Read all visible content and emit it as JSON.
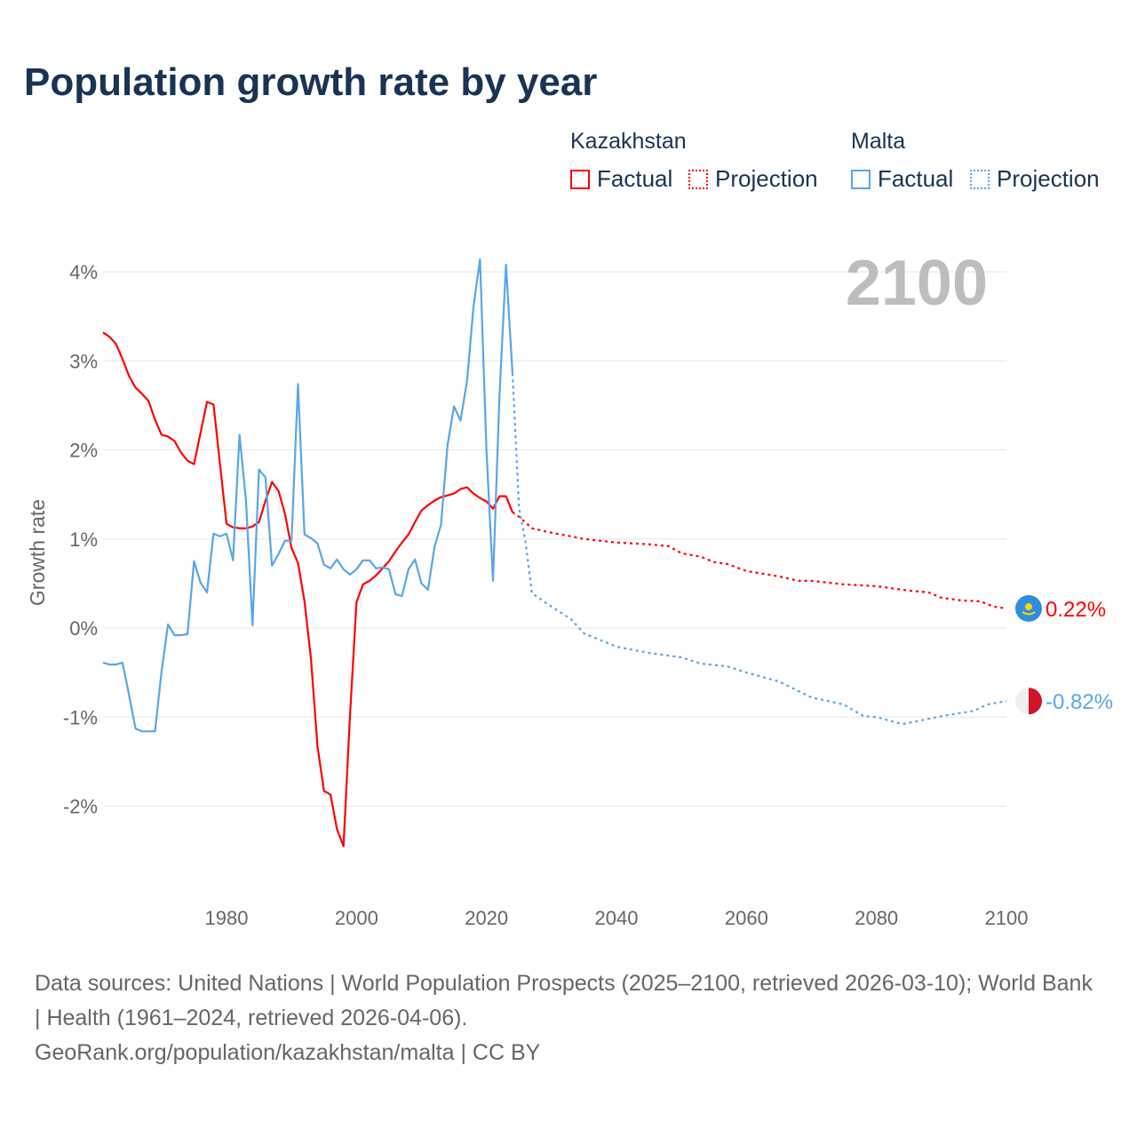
{
  "title": "Population growth rate by year",
  "legend": {
    "groups": [
      {
        "name": "Kazakhstan",
        "factual": "Factual",
        "projection": "Projection",
        "color": "#ff0000"
      },
      {
        "name": "Malta",
        "factual": "Factual",
        "projection": "Projection",
        "color": "#5aa5e8"
      }
    ]
  },
  "year_label": "2100",
  "footer": {
    "line1": "Data sources: United Nations | World Population Prospects (2025–2100, retrieved 2026-03-10); World Bank | Health (1961–2024, retrieved 2026-04-06).",
    "line2": "GeoRank.org/population/kazakhstan/malta | CC BY"
  },
  "chart_data": {
    "type": "line",
    "title": "Population growth rate by year",
    "xlabel": "",
    "ylabel": "Growth rate",
    "xlim": [
      1961,
      2100
    ],
    "ylim": [
      -3,
      4.5
    ],
    "xticks": [
      1980,
      2000,
      2020,
      2040,
      2060,
      2080,
      2100
    ],
    "xtick_labels": [
      "1980",
      "2000",
      "2020",
      "2040",
      "2060",
      "2080",
      "2100"
    ],
    "yticks": [
      -2,
      -1,
      0,
      1,
      2,
      3,
      4
    ],
    "ytick_labels": [
      "-2%",
      "-1%",
      "0%",
      "1%",
      "2%",
      "3%",
      "4%"
    ],
    "grid": true,
    "legend_position": "top-right",
    "series": [
      {
        "name": "Kazakhstan",
        "color": "#ff0000",
        "end_label": "0.22%",
        "flag": "kazakhstan-flag",
        "factual_start": 1961,
        "factual": [
          3.32,
          3.27,
          3.19,
          3.02,
          2.83,
          2.7,
          2.63,
          2.55,
          2.34,
          2.17,
          2.15,
          2.1,
          1.97,
          1.88,
          1.84,
          2.19,
          2.54,
          2.51,
          1.84,
          1.17,
          1.13,
          1.12,
          1.12,
          1.14,
          1.19,
          1.43,
          1.64,
          1.54,
          1.28,
          0.9,
          0.73,
          0.3,
          -0.35,
          -1.33,
          -1.83,
          -1.87,
          -2.26,
          -2.45,
          -0.98,
          0.29,
          0.49,
          0.53,
          0.59,
          0.67,
          0.75,
          0.86,
          0.96,
          1.05,
          1.19,
          1.32,
          1.38,
          1.43,
          1.47,
          1.49,
          1.51,
          1.56,
          1.58,
          1.51,
          1.46,
          1.42,
          1.34,
          1.48,
          1.48,
          1.3
        ],
        "projection": [
          [
            2024,
            1.3
          ],
          [
            2025,
            1.25
          ],
          [
            2027,
            1.12
          ],
          [
            2030,
            1.07
          ],
          [
            2033,
            1.03
          ],
          [
            2035,
            1.0
          ],
          [
            2040,
            0.96
          ],
          [
            2045,
            0.94
          ],
          [
            2048,
            0.92
          ],
          [
            2050,
            0.84
          ],
          [
            2053,
            0.8
          ],
          [
            2055,
            0.74
          ],
          [
            2057,
            0.72
          ],
          [
            2060,
            0.64
          ],
          [
            2065,
            0.58
          ],
          [
            2068,
            0.53
          ],
          [
            2070,
            0.53
          ],
          [
            2075,
            0.49
          ],
          [
            2080,
            0.47
          ],
          [
            2085,
            0.42
          ],
          [
            2088,
            0.4
          ],
          [
            2090,
            0.34
          ],
          [
            2093,
            0.31
          ],
          [
            2096,
            0.3
          ],
          [
            2098,
            0.24
          ],
          [
            2100,
            0.22
          ]
        ]
      },
      {
        "name": "Malta",
        "color": "#5aa5e8",
        "end_label": "-0.82%",
        "flag": "malta-flag",
        "factual_start": 1961,
        "factual": [
          -0.39,
          -0.41,
          -0.41,
          -0.39,
          -0.75,
          -1.13,
          -1.16,
          -1.16,
          -1.16,
          -0.49,
          0.04,
          -0.08,
          -0.08,
          -0.07,
          0.75,
          0.51,
          0.4,
          1.06,
          1.03,
          1.06,
          0.76,
          2.17,
          1.43,
          0.03,
          1.78,
          1.69,
          0.7,
          0.83,
          0.98,
          0.98,
          2.74,
          1.05,
          1.01,
          0.95,
          0.71,
          0.67,
          0.77,
          0.66,
          0.6,
          0.66,
          0.76,
          0.76,
          0.67,
          0.68,
          0.66,
          0.38,
          0.36,
          0.66,
          0.77,
          0.5,
          0.43,
          0.91,
          1.16,
          2.05,
          2.49,
          2.33,
          2.77,
          3.61,
          4.14,
          1.99,
          0.53,
          2.61,
          4.08,
          2.86
        ],
        "projection": [
          [
            2024,
            2.86
          ],
          [
            2025,
            1.35
          ],
          [
            2026,
            0.97
          ],
          [
            2027,
            0.39
          ],
          [
            2030,
            0.24
          ],
          [
            2033,
            0.1
          ],
          [
            2035,
            -0.06
          ],
          [
            2040,
            -0.21
          ],
          [
            2045,
            -0.28
          ],
          [
            2050,
            -0.33
          ],
          [
            2053,
            -0.4
          ],
          [
            2057,
            -0.43
          ],
          [
            2060,
            -0.5
          ],
          [
            2065,
            -0.6
          ],
          [
            2070,
            -0.78
          ],
          [
            2075,
            -0.86
          ],
          [
            2078,
            -0.99
          ],
          [
            2080,
            -1.0
          ],
          [
            2084,
            -1.08
          ],
          [
            2090,
            -0.99
          ],
          [
            2095,
            -0.93
          ],
          [
            2097,
            -0.86
          ],
          [
            2100,
            -0.82
          ]
        ]
      }
    ]
  }
}
